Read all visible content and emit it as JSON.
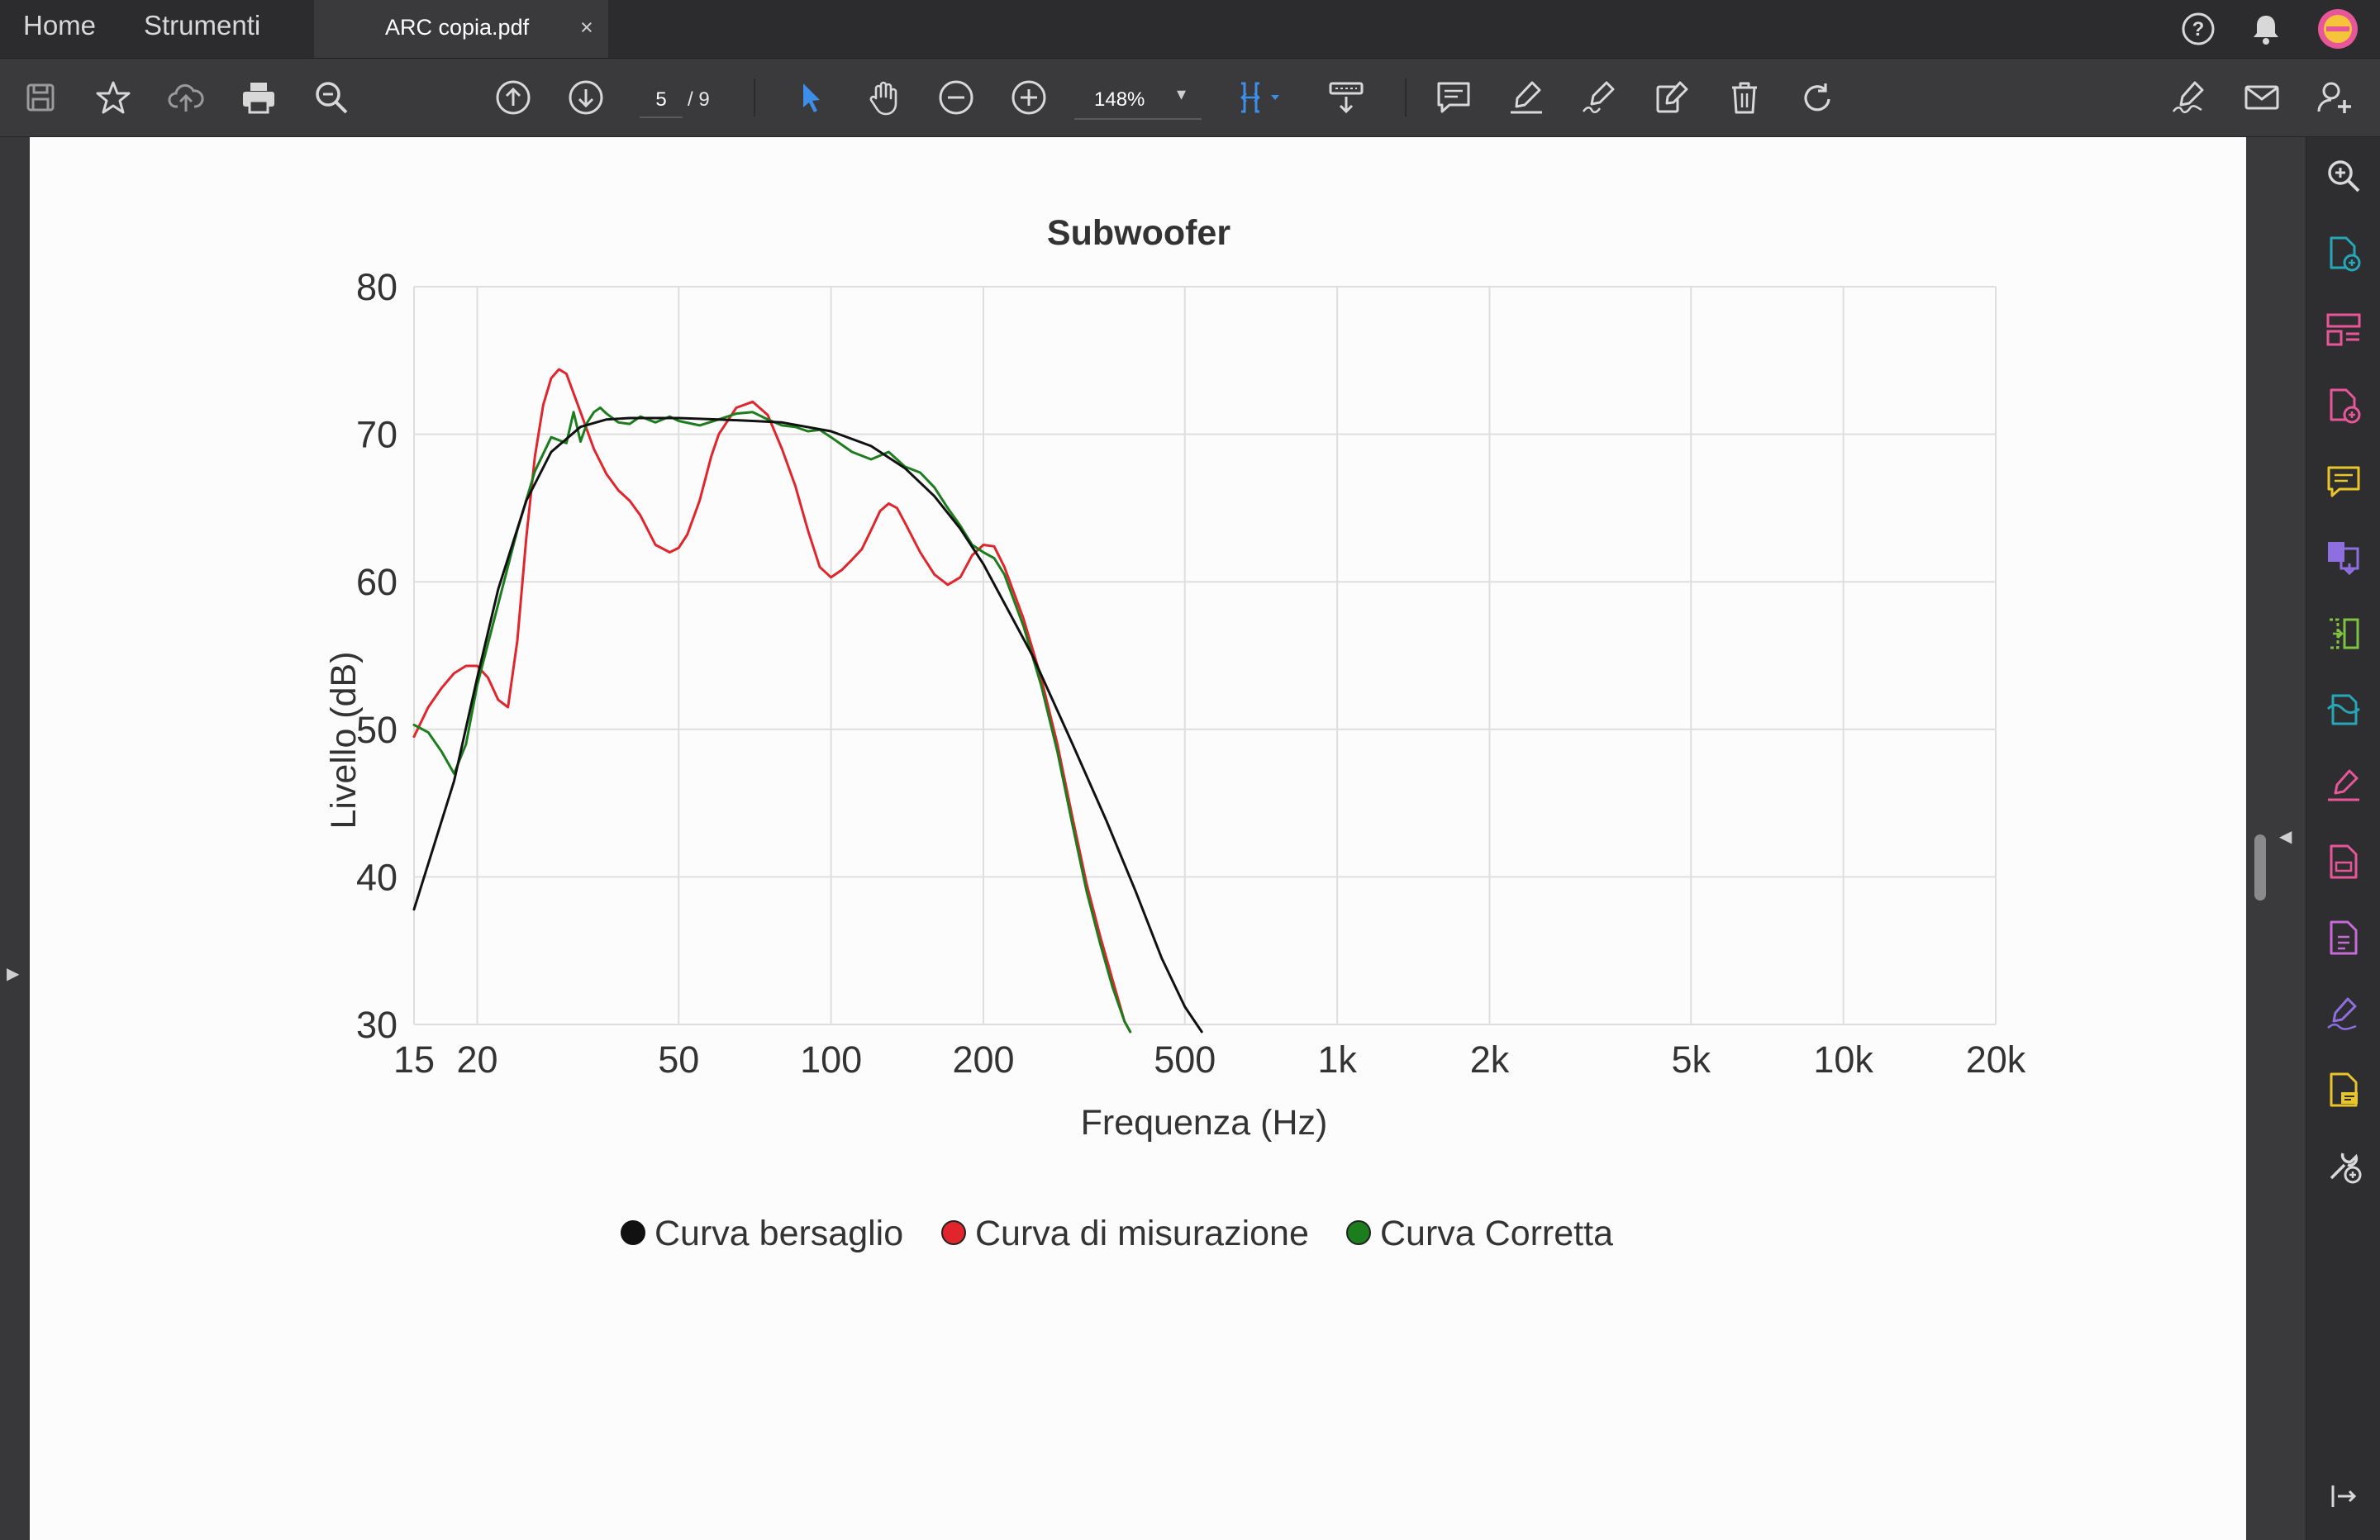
{
  "tabbar": {
    "home_label": "Home",
    "tools_label": "Strumenti",
    "document_tab": "ARC copia.pdf",
    "close_glyph": "×"
  },
  "toolbar": {
    "page_current": "5",
    "page_total": "/ 9",
    "zoom": "148%",
    "zoom_caret": "▾",
    "icons": [
      "save-icon",
      "star-icon",
      "cloud-upload-icon",
      "print-icon",
      "zoom-search-icon",
      "page-up-icon",
      "page-down-icon",
      "select-arrow-icon",
      "hand-icon",
      "zoom-out-icon",
      "zoom-in-icon",
      "fit-page-icon",
      "scroll-mode-icon",
      "comment-icon",
      "highlight-icon",
      "sign-pen-icon",
      "edit-text-icon",
      "delete-icon",
      "rotate-icon",
      "fill-sign-icon",
      "email-icon",
      "add-user-icon"
    ]
  },
  "top_right_icons": [
    "help-icon",
    "bell-icon",
    "avatar"
  ],
  "right_panel_icons": [
    "zoom-search-icon",
    "create-pdf-icon",
    "organize-pages-icon",
    "export-pdf-icon",
    "comment-icon",
    "combine-files-icon",
    "compare-icon",
    "scan-icon",
    "fill-sign-icon",
    "edit-pdf-icon",
    "protect-icon",
    "sign-icon",
    "notes-icon",
    "more-tools-icon",
    "collapse-panel-icon"
  ],
  "colors": {
    "target": "#111111",
    "measured": "#e0262c",
    "corrected": "#1c7d1c",
    "accent": "#3d8ee8",
    "pink": "#e8569a",
    "teal": "#27a6b8",
    "purple": "#8f6ee0",
    "yellow": "#e9c52b",
    "green": "#7fc241"
  },
  "chart_data": {
    "type": "line",
    "title": "Subwoofer",
    "xlabel": "Frequenza (Hz)",
    "ylabel": "Livello (dB)",
    "x_scale": "log",
    "xlim": [
      15,
      20000
    ],
    "ylim": [
      30,
      80
    ],
    "x_ticks": [
      15,
      20,
      50,
      100,
      200,
      500,
      1000,
      2000,
      5000,
      10000,
      20000
    ],
    "x_tick_labels": [
      "15",
      "20",
      "50",
      "100",
      "200",
      "500",
      "1k",
      "2k",
      "5k",
      "10k",
      "20k"
    ],
    "y_ticks": [
      30,
      40,
      50,
      60,
      70,
      80
    ],
    "y_tick_labels": [
      "30",
      "40",
      "50",
      "60",
      "70",
      "80"
    ],
    "grid": true,
    "legend_position": "bottom",
    "series": [
      {
        "name": "Curva bersaglio",
        "x": [
          15,
          18,
          20,
          22,
          25,
          28,
          32,
          36,
          40,
          50,
          60,
          70,
          80,
          100,
          120,
          140,
          160,
          180,
          200,
          250,
          300,
          350,
          400,
          450,
          500,
          540
        ],
        "y": [
          37.8,
          46.5,
          53.5,
          59.5,
          65.5,
          68.8,
          70.5,
          71.0,
          71.1,
          71.1,
          71.0,
          70.9,
          70.8,
          70.2,
          69.2,
          67.7,
          65.8,
          63.6,
          61.2,
          55.0,
          49.0,
          43.8,
          39.0,
          34.5,
          31.2,
          29.2
        ]
      },
      {
        "name": "Curva di misurazione",
        "x": [
          15,
          16,
          17,
          18,
          19,
          20,
          21,
          22,
          23,
          24,
          25,
          26,
          27,
          28,
          29,
          30,
          32,
          34,
          36,
          38,
          40,
          42,
          45,
          48,
          50,
          52,
          55,
          58,
          60,
          65,
          70,
          75,
          80,
          85,
          90,
          95,
          100,
          105,
          110,
          115,
          120,
          125,
          130,
          135,
          140,
          150,
          160,
          170,
          180,
          190,
          200,
          210,
          220,
          240,
          260,
          280,
          300,
          320,
          340,
          360,
          380,
          390
        ],
        "y": [
          49.5,
          51.5,
          52.8,
          53.8,
          54.3,
          54.3,
          53.5,
          52.0,
          51.5,
          56.0,
          63.0,
          68.5,
          72.0,
          73.8,
          74.4,
          74.1,
          71.5,
          69.0,
          67.3,
          66.2,
          65.5,
          64.5,
          62.5,
          62.0,
          62.3,
          63.2,
          65.5,
          68.5,
          70.0,
          71.8,
          72.2,
          71.3,
          69.0,
          66.5,
          63.5,
          61.0,
          60.3,
          60.8,
          61.5,
          62.2,
          63.5,
          64.8,
          65.3,
          65.0,
          64.0,
          62.0,
          60.5,
          59.8,
          60.3,
          61.8,
          62.5,
          62.4,
          61.0,
          57.5,
          53.5,
          49.0,
          44.0,
          39.5,
          36.0,
          33.0,
          30.2,
          29.5
        ]
      },
      {
        "name": "Curva Corretta",
        "x": [
          15,
          16,
          17,
          18,
          19,
          20,
          22,
          24,
          26,
          28,
          30,
          31,
          32,
          33,
          34,
          35,
          36,
          38,
          40,
          42,
          45,
          48,
          50,
          55,
          60,
          65,
          70,
          75,
          80,
          85,
          90,
          95,
          100,
          110,
          120,
          130,
          140,
          150,
          160,
          170,
          180,
          190,
          200,
          210,
          220,
          240,
          260,
          280,
          300,
          320,
          340,
          360,
          380,
          390
        ],
        "y": [
          50.3,
          49.8,
          48.5,
          47.0,
          49.0,
          53.0,
          58.5,
          63.5,
          67.5,
          69.8,
          69.4,
          71.5,
          69.5,
          70.8,
          71.5,
          71.8,
          71.4,
          70.8,
          70.7,
          71.2,
          70.8,
          71.2,
          70.9,
          70.6,
          71.0,
          71.4,
          71.5,
          71.0,
          70.6,
          70.5,
          70.2,
          70.3,
          69.8,
          68.8,
          68.3,
          68.8,
          67.8,
          67.4,
          66.4,
          65.0,
          63.8,
          62.5,
          62.0,
          61.6,
          60.5,
          57.0,
          53.0,
          48.5,
          43.5,
          39.0,
          35.5,
          32.5,
          30.2,
          29.5
        ]
      }
    ]
  }
}
